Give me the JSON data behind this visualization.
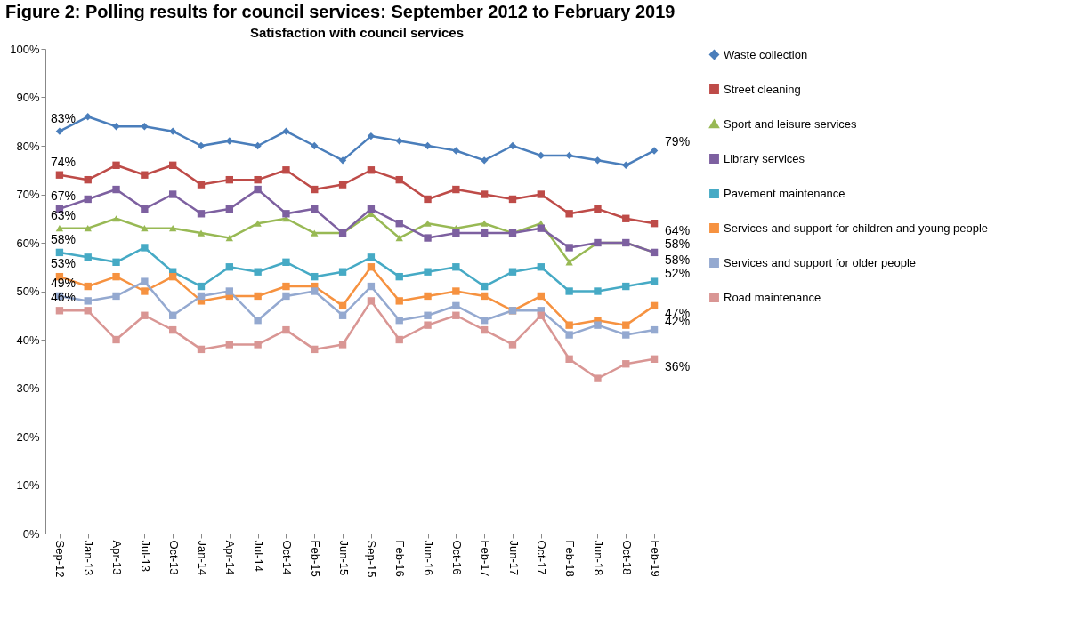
{
  "chart_data": {
    "type": "line",
    "title": "Figure 2: Polling results for council services: September 2012 to February 2019",
    "subtitle": "Satisfaction with council services",
    "categories": [
      "Sep-12",
      "Jan-13",
      "Apr-13",
      "Jul-13",
      "Oct-13",
      "Jan-14",
      "Apr-14",
      "Jul-14",
      "Oct-14",
      "Feb-15",
      "Jun-15",
      "Sep-15",
      "Feb-16",
      "Jun-16",
      "Oct-16",
      "Feb-17",
      "Jun-17",
      "Oct-17",
      "Feb-18",
      "Jun-18",
      "Oct-18",
      "Feb-19"
    ],
    "ylim": [
      0,
      100
    ],
    "yticks": [
      {
        "value": 0,
        "label": "0%"
      },
      {
        "value": 10,
        "label": "10%"
      },
      {
        "value": 20,
        "label": "20%"
      },
      {
        "value": 30,
        "label": "30%"
      },
      {
        "value": 40,
        "label": "40%"
      },
      {
        "value": 50,
        "label": "50%"
      },
      {
        "value": 60,
        "label": "60%"
      },
      {
        "value": 70,
        "label": "70%"
      },
      {
        "value": 80,
        "label": "80%"
      },
      {
        "value": 90,
        "label": "90%"
      },
      {
        "value": 100,
        "label": "100%"
      }
    ],
    "grid": false,
    "legend": "right",
    "series": [
      {
        "name": "Waste collection",
        "color": "#4a7ebb",
        "marker": "diamond",
        "values": [
          83,
          86,
          84,
          84,
          83,
          80,
          81,
          80,
          83,
          80,
          77,
          82,
          81,
          80,
          79,
          77,
          80,
          78,
          78,
          77,
          76,
          79
        ],
        "value_labels": [
          "83%",
          null,
          null,
          null,
          null,
          null,
          null,
          null,
          null,
          null,
          null,
          null,
          null,
          null,
          null,
          null,
          null,
          null,
          null,
          null,
          null,
          "79%"
        ]
      },
      {
        "name": "Street cleaning",
        "color": "#be4b48",
        "marker": "square",
        "values": [
          74,
          73,
          76,
          74,
          76,
          72,
          73,
          73,
          75,
          71,
          72,
          75,
          73,
          69,
          71,
          70,
          69,
          70,
          66,
          67,
          65,
          64
        ],
        "value_labels": [
          "74%",
          null,
          null,
          null,
          null,
          null,
          null,
          null,
          null,
          null,
          null,
          null,
          null,
          null,
          null,
          null,
          null,
          null,
          null,
          null,
          null,
          "64%"
        ]
      },
      {
        "name": "Sport and leisure services",
        "color": "#98b954",
        "marker": "triangle",
        "values": [
          63,
          63,
          65,
          63,
          63,
          62,
          61,
          64,
          65,
          62,
          62,
          66,
          61,
          64,
          63,
          64,
          62,
          64,
          56,
          60,
          60,
          58
        ],
        "value_labels": [
          "63%",
          null,
          null,
          null,
          null,
          null,
          null,
          null,
          null,
          null,
          null,
          null,
          null,
          null,
          null,
          null,
          null,
          null,
          null,
          null,
          null,
          "58%"
        ]
      },
      {
        "name": "Library services",
        "color": "#7d60a0",
        "marker": "square",
        "values": [
          67,
          69,
          71,
          67,
          70,
          66,
          67,
          71,
          66,
          67,
          62,
          67,
          64,
          61,
          62,
          62,
          62,
          63,
          59,
          60,
          60,
          58
        ],
        "value_labels": [
          "67%",
          null,
          null,
          null,
          null,
          null,
          null,
          null,
          null,
          null,
          null,
          null,
          null,
          null,
          null,
          null,
          null,
          null,
          null,
          null,
          null,
          "58%"
        ]
      },
      {
        "name": "Pavement maintenance",
        "color": "#46aac5",
        "marker": "square",
        "values": [
          58,
          57,
          56,
          59,
          54,
          51,
          55,
          54,
          56,
          53,
          54,
          57,
          53,
          54,
          55,
          51,
          54,
          55,
          50,
          50,
          51,
          52
        ],
        "value_labels": [
          "58%",
          null,
          null,
          null,
          null,
          null,
          null,
          null,
          null,
          null,
          null,
          null,
          null,
          null,
          null,
          null,
          null,
          null,
          null,
          null,
          null,
          "52%"
        ]
      },
      {
        "name": "Services and support for children and young people",
        "color": "#f69240",
        "marker": "square",
        "values": [
          53,
          51,
          53,
          50,
          53,
          48,
          49,
          49,
          51,
          51,
          47,
          55,
          48,
          49,
          50,
          49,
          46,
          49,
          43,
          44,
          43,
          47
        ],
        "value_labels": [
          "53%",
          null,
          null,
          null,
          null,
          null,
          null,
          null,
          null,
          null,
          null,
          null,
          null,
          null,
          null,
          null,
          null,
          null,
          null,
          null,
          null,
          "47%"
        ]
      },
      {
        "name": "Services and support for older people",
        "color": "#94a9d0",
        "marker": "square",
        "values": [
          49,
          48,
          49,
          52,
          45,
          49,
          50,
          44,
          49,
          50,
          45,
          51,
          44,
          45,
          47,
          44,
          46,
          46,
          41,
          43,
          41,
          42
        ],
        "value_labels": [
          "49%",
          null,
          null,
          null,
          null,
          null,
          null,
          null,
          null,
          null,
          null,
          null,
          null,
          null,
          null,
          null,
          null,
          null,
          null,
          null,
          null,
          "42%"
        ]
      },
      {
        "name": "Road maintenance",
        "color": "#d99694",
        "marker": "square",
        "values": [
          46,
          46,
          40,
          45,
          42,
          38,
          39,
          39,
          42,
          38,
          39,
          48,
          40,
          43,
          45,
          42,
          39,
          45,
          36,
          32,
          35,
          36
        ],
        "value_labels": [
          "46%",
          null,
          null,
          null,
          null,
          null,
          null,
          null,
          null,
          null,
          null,
          null,
          null,
          null,
          null,
          null,
          null,
          null,
          null,
          null,
          null,
          "36%"
        ]
      }
    ]
  }
}
